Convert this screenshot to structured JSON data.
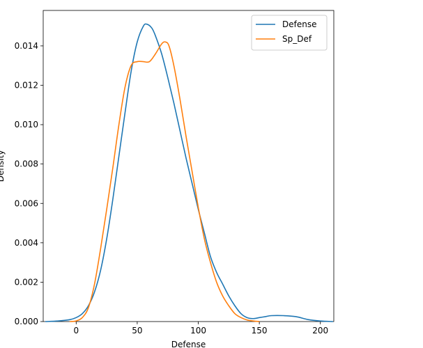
{
  "chart_data": {
    "type": "line",
    "xlabel": "Defense",
    "ylabel": "Density",
    "xlim": [
      -27,
      211
    ],
    "ylim": [
      0,
      0.0158
    ],
    "x_ticks": [
      0,
      50,
      100,
      150,
      200
    ],
    "y_ticks": [
      0.0,
      0.002,
      0.004,
      0.006,
      0.008,
      0.01,
      0.012,
      0.014
    ],
    "x_tick_labels": [
      "0",
      "50",
      "100",
      "150",
      "200"
    ],
    "y_tick_labels": [
      "0.000",
      "0.002",
      "0.004",
      "0.006",
      "0.008",
      "0.010",
      "0.012",
      "0.014"
    ],
    "grid": false,
    "legend": {
      "placement": "top-right"
    },
    "series": [
      {
        "name": "Defense",
        "color": "#1f77b4",
        "points": [
          [
            -25,
            0.0
          ],
          [
            -15,
            3e-05
          ],
          [
            -5,
            0.0001
          ],
          [
            0,
            0.0002
          ],
          [
            5,
            0.0004
          ],
          [
            10,
            0.0008
          ],
          [
            15,
            0.0015
          ],
          [
            20,
            0.0026
          ],
          [
            25,
            0.0042
          ],
          [
            30,
            0.0062
          ],
          [
            35,
            0.0084
          ],
          [
            40,
            0.0106
          ],
          [
            45,
            0.0127
          ],
          [
            50,
            0.0142
          ],
          [
            55,
            0.015
          ],
          [
            58,
            0.0151
          ],
          [
            62,
            0.0149
          ],
          [
            65,
            0.0145
          ],
          [
            70,
            0.0136
          ],
          [
            75,
            0.0124
          ],
          [
            80,
            0.0111
          ],
          [
            85,
            0.0097
          ],
          [
            90,
            0.0083
          ],
          [
            95,
            0.007
          ],
          [
            100,
            0.0057
          ],
          [
            105,
            0.0045
          ],
          [
            110,
            0.0033
          ],
          [
            115,
            0.0025
          ],
          [
            120,
            0.0019
          ],
          [
            125,
            0.0013
          ],
          [
            130,
            0.0008
          ],
          [
            135,
            0.0004
          ],
          [
            140,
            0.0002
          ],
          [
            145,
            0.00015
          ],
          [
            150,
            0.0002
          ],
          [
            155,
            0.00025
          ],
          [
            160,
            0.0003
          ],
          [
            170,
            0.0003
          ],
          [
            180,
            0.00025
          ],
          [
            190,
            0.0001
          ],
          [
            200,
            3e-05
          ],
          [
            210,
            0.0
          ]
        ]
      },
      {
        "name": "Sp_Def",
        "color": "#ff7f0e",
        "points": [
          [
            -5,
            0.0
          ],
          [
            0,
            3e-05
          ],
          [
            5,
            0.0002
          ],
          [
            10,
            0.0007
          ],
          [
            15,
            0.0019
          ],
          [
            20,
            0.0037
          ],
          [
            25,
            0.0057
          ],
          [
            30,
            0.0078
          ],
          [
            35,
            0.01
          ],
          [
            40,
            0.0119
          ],
          [
            45,
            0.013
          ],
          [
            50,
            0.0132
          ],
          [
            55,
            0.0132
          ],
          [
            60,
            0.0132
          ],
          [
            65,
            0.0136
          ],
          [
            70,
            0.0141
          ],
          [
            73,
            0.0142
          ],
          [
            76,
            0.014
          ],
          [
            80,
            0.013
          ],
          [
            85,
            0.0113
          ],
          [
            90,
            0.0094
          ],
          [
            95,
            0.0076
          ],
          [
            100,
            0.0058
          ],
          [
            105,
            0.0042
          ],
          [
            110,
            0.003
          ],
          [
            115,
            0.002
          ],
          [
            120,
            0.0013
          ],
          [
            125,
            0.0008
          ],
          [
            130,
            0.0004
          ],
          [
            135,
            0.0002
          ],
          [
            140,
            8e-05
          ],
          [
            145,
            3e-05
          ],
          [
            150,
            0.0
          ]
        ]
      }
    ]
  }
}
